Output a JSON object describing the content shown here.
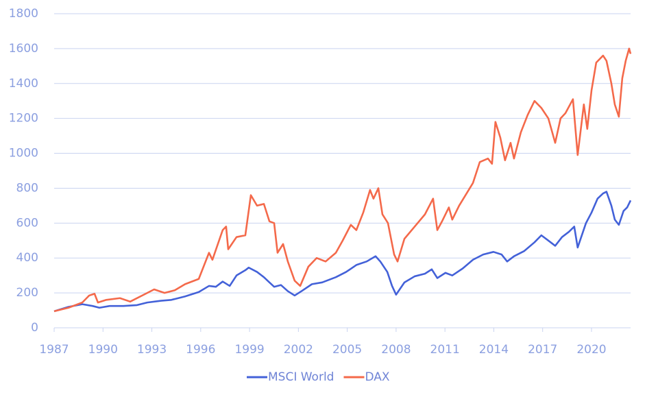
{
  "chart_data": {
    "type": "line",
    "xlim": [
      1987,
      2022.4
    ],
    "xticks": [
      1987,
      1990,
      1993,
      1996,
      1999,
      2002,
      2005,
      2008,
      2011,
      2014,
      2017,
      2020
    ],
    "ylim": [
      0,
      1800
    ],
    "yticks": [
      0,
      200,
      400,
      600,
      800,
      1000,
      1200,
      1400,
      1600,
      1800
    ],
    "grid": true,
    "legend": "bottom",
    "series": [
      {
        "name": "MSCI World",
        "color": "#4361d8",
        "x": [
          1987.0,
          1987.88,
          1988.73,
          1989.36,
          1989.78,
          1990.41,
          1991.25,
          1992.09,
          1992.72,
          1993.57,
          1994.2,
          1995.04,
          1995.88,
          1996.51,
          1996.93,
          1997.35,
          1997.78,
          1998.2,
          1998.74,
          1998.95,
          1999.46,
          1999.88,
          2000.22,
          2000.51,
          2000.93,
          2001.35,
          2001.77,
          2002.19,
          2002.83,
          2003.46,
          2004.3,
          2004.93,
          2005.56,
          2006.19,
          2006.74,
          2007.03,
          2007.46,
          2007.75,
          2008.0,
          2008.51,
          2009.14,
          2009.77,
          2010.19,
          2010.53,
          2011.03,
          2011.45,
          2012.09,
          2012.72,
          2013.35,
          2013.98,
          2014.48,
          2014.82,
          2015.24,
          2015.87,
          2016.5,
          2016.92,
          2017.35,
          2017.77,
          2018.19,
          2018.61,
          2018.94,
          2019.15,
          2019.66,
          2020.0,
          2020.37,
          2020.71,
          2020.92,
          2021.22,
          2021.43,
          2021.68,
          2021.97,
          2022.19,
          2022.4
        ],
        "values": [
          95,
          120,
          135,
          125,
          115,
          125,
          125,
          130,
          145,
          155,
          160,
          180,
          205,
          240,
          235,
          265,
          240,
          300,
          330,
          345,
          320,
          290,
          260,
          235,
          245,
          210,
          185,
          210,
          250,
          260,
          290,
          320,
          360,
          380,
          410,
          380,
          320,
          240,
          190,
          260,
          295,
          310,
          335,
          285,
          315,
          300,
          340,
          390,
          420,
          435,
          420,
          380,
          410,
          440,
          490,
          530,
          500,
          470,
          520,
          550,
          580,
          460,
          600,
          660,
          740,
          770,
          780,
          700,
          620,
          590,
          670,
          690,
          730
        ]
      },
      {
        "name": "DAX",
        "color": "#f4694a",
        "x": [
          1987.0,
          1987.88,
          1988.73,
          1989.15,
          1989.48,
          1989.69,
          1990.2,
          1991.04,
          1991.67,
          1992.72,
          1993.14,
          1993.78,
          1994.41,
          1995.04,
          1995.88,
          1996.51,
          1996.72,
          1997.35,
          1997.56,
          1997.69,
          1998.2,
          1998.74,
          1999.08,
          1999.46,
          1999.88,
          2000.22,
          2000.51,
          2000.72,
          2001.06,
          2001.35,
          2001.77,
          2002.11,
          2002.61,
          2003.12,
          2003.67,
          2004.3,
          2004.72,
          2005.22,
          2005.56,
          2005.98,
          2006.4,
          2006.61,
          2006.91,
          2007.16,
          2007.5,
          2007.88,
          2008.09,
          2008.51,
          2009.14,
          2009.77,
          2010.27,
          2010.53,
          2010.82,
          2011.24,
          2011.45,
          2011.87,
          2012.72,
          2013.14,
          2013.64,
          2013.89,
          2014.1,
          2014.4,
          2014.69,
          2015.03,
          2015.24,
          2015.66,
          2016.08,
          2016.5,
          2016.92,
          2017.35,
          2017.77,
          2018.1,
          2018.4,
          2018.86,
          2019.15,
          2019.53,
          2019.74,
          2020.0,
          2020.29,
          2020.71,
          2020.92,
          2021.22,
          2021.43,
          2021.68,
          2021.89,
          2022.1,
          2022.31,
          2022.4
        ],
        "values": [
          95,
          115,
          145,
          185,
          195,
          145,
          160,
          170,
          150,
          200,
          220,
          200,
          215,
          250,
          280,
          430,
          390,
          560,
          580,
          450,
          520,
          530,
          760,
          700,
          710,
          610,
          600,
          430,
          480,
          380,
          270,
          240,
          350,
          400,
          380,
          430,
          500,
          590,
          560,
          660,
          790,
          740,
          800,
          650,
          600,
          420,
          380,
          510,
          580,
          650,
          740,
          560,
          610,
          690,
          620,
          700,
          830,
          950,
          970,
          940,
          1180,
          1090,
          960,
          1060,
          970,
          1120,
          1220,
          1300,
          1260,
          1200,
          1060,
          1200,
          1230,
          1310,
          990,
          1280,
          1140,
          1360,
          1520,
          1560,
          1530,
          1400,
          1280,
          1210,
          1430,
          1530,
          1600,
          1570
        ]
      }
    ]
  }
}
